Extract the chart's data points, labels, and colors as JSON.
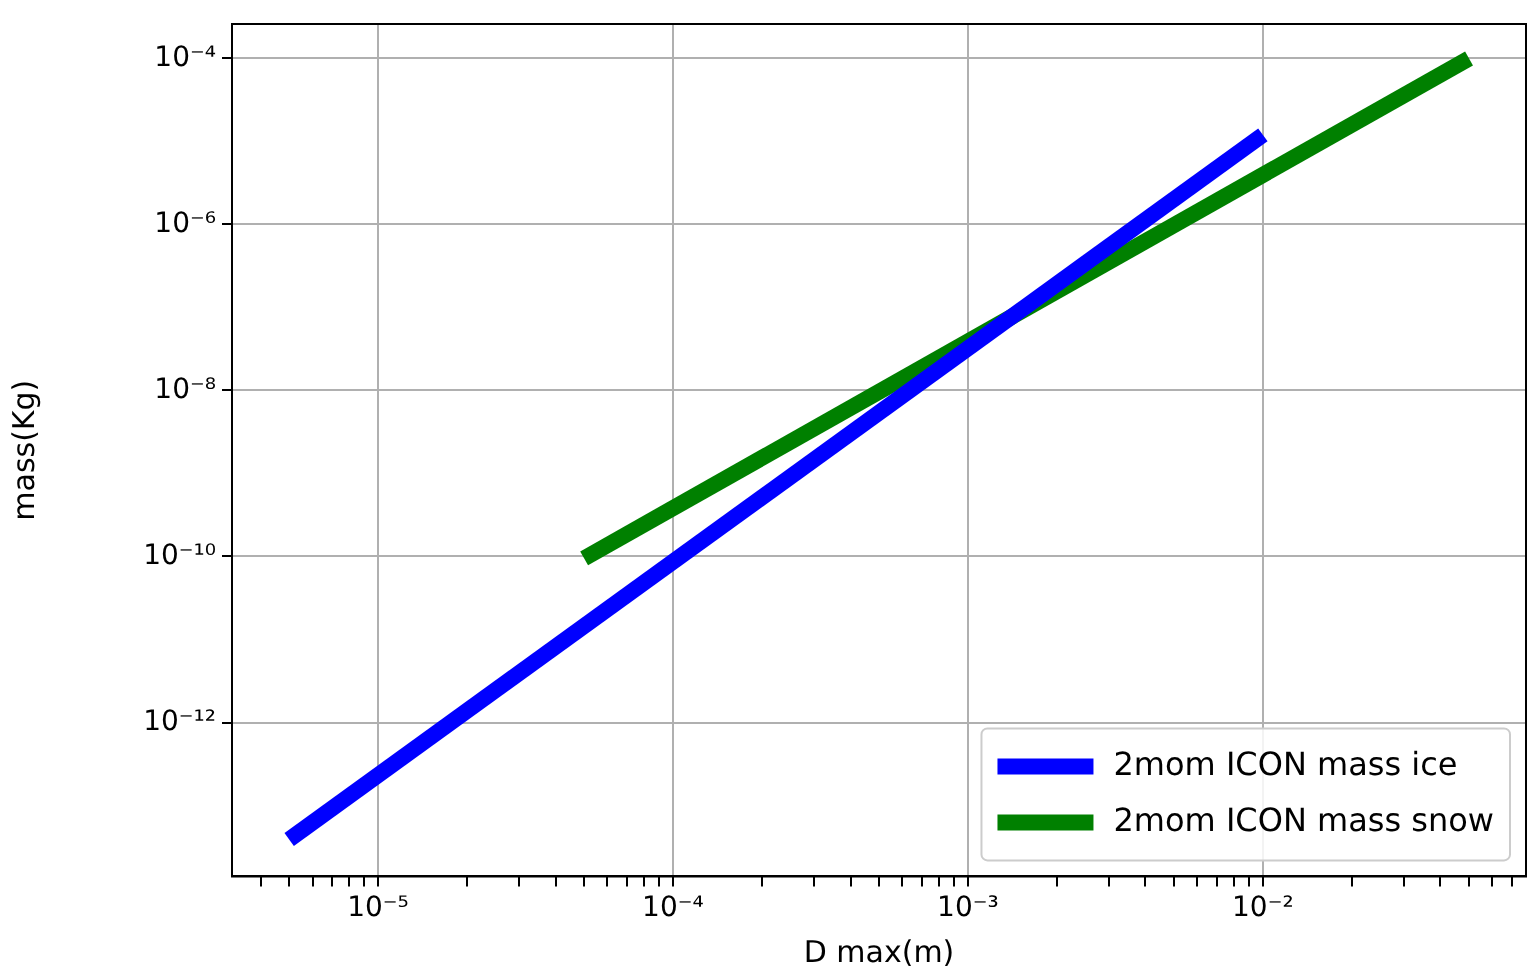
{
  "chart_data": {
    "type": "line",
    "xlabel": "D max(m)",
    "ylabel": "mass(Kg)",
    "log": "xy",
    "grid": true,
    "legend": "bottom right",
    "marker": "none",
    "line_style": "solid",
    "xlim": [
      3.2e-06,
      0.078
    ],
    "ylim": [
      1.4e-14,
      0.00026
    ],
    "xticks": [
      {
        "value": 4e-06,
        "label": null
      },
      {
        "value": 5e-06,
        "label": null
      },
      {
        "value": 6e-06,
        "label": null
      },
      {
        "value": 7e-06,
        "label": null
      },
      {
        "value": 8e-06,
        "label": null
      },
      {
        "value": 9e-06,
        "label": null
      },
      {
        "value": 1e-05,
        "label": "10⁻⁵"
      },
      {
        "value": 2e-05,
        "label": null
      },
      {
        "value": 3e-05,
        "label": null
      },
      {
        "value": 4e-05,
        "label": null
      },
      {
        "value": 5e-05,
        "label": null
      },
      {
        "value": 6e-05,
        "label": null
      },
      {
        "value": 7e-05,
        "label": null
      },
      {
        "value": 8e-05,
        "label": null
      },
      {
        "value": 9e-05,
        "label": null
      },
      {
        "value": 0.0001,
        "label": "10⁻⁴"
      },
      {
        "value": 0.0002,
        "label": null
      },
      {
        "value": 0.0003,
        "label": null
      },
      {
        "value": 0.0004,
        "label": null
      },
      {
        "value": 0.0005,
        "label": null
      },
      {
        "value": 0.0006,
        "label": null
      },
      {
        "value": 0.0007,
        "label": null
      },
      {
        "value": 0.0008,
        "label": null
      },
      {
        "value": 0.0009,
        "label": null
      },
      {
        "value": 0.001,
        "label": "10⁻³"
      },
      {
        "value": 0.002,
        "label": null
      },
      {
        "value": 0.003,
        "label": null
      },
      {
        "value": 0.004,
        "label": null
      },
      {
        "value": 0.005,
        "label": null
      },
      {
        "value": 0.006,
        "label": null
      },
      {
        "value": 0.007,
        "label": null
      },
      {
        "value": 0.008,
        "label": null
      },
      {
        "value": 0.009,
        "label": null
      },
      {
        "value": 0.01,
        "label": "10⁻²"
      },
      {
        "value": 0.02,
        "label": null
      },
      {
        "value": 0.03,
        "label": null
      },
      {
        "value": 0.04,
        "label": null
      },
      {
        "value": 0.05,
        "label": null
      },
      {
        "value": 0.06,
        "label": null
      },
      {
        "value": 0.07,
        "label": null
      }
    ],
    "yticks": [
      {
        "value": 1e-12,
        "label": "10⁻¹²"
      },
      {
        "value": 1e-10,
        "label": "10⁻¹⁰"
      },
      {
        "value": 1e-08,
        "label": "10⁻⁸"
      },
      {
        "value": 1e-06,
        "label": "10⁻⁶"
      },
      {
        "value": 0.0001,
        "label": "10⁻⁴"
      }
    ],
    "series": [
      {
        "name": "2mom ICON mass ice",
        "color": "#0000ff",
        "x": [
          5e-06,
          0.01
        ],
        "values": [
          3.9e-14,
          1.2e-05
        ]
      },
      {
        "name": "2mom ICON mass snow",
        "color": "#008000",
        "x": [
          5e-05,
          0.05
        ],
        "values": [
          9.5e-11,
          0.0001
        ]
      }
    ]
  }
}
